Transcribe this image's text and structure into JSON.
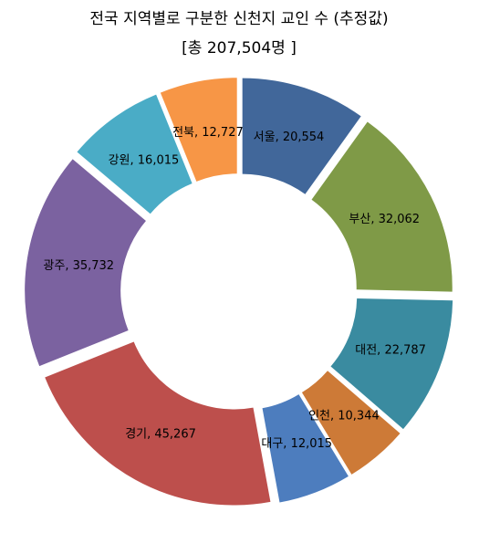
{
  "chart_data": {
    "type": "pie",
    "title": "전국 지역별로 구분한 신천지 교인 수 (추정값)",
    "subtitle": "[총 207,504명 ]",
    "slices": [
      {
        "label": "서울",
        "value": 20554,
        "text": "서울,  20,554",
        "color": "#41679a"
      },
      {
        "label": "부산",
        "value": 32062,
        "text": "부산,  32,062",
        "color": "#7f9a47"
      },
      {
        "label": "대전",
        "value": 22787,
        "text": "대전,  22,787",
        "color": "#3a8ba0"
      },
      {
        "label": "인천",
        "value": 10344,
        "text": "인천,  10,344",
        "color": "#cd7a37"
      },
      {
        "label": "대구",
        "value": 12015,
        "text": "대구,  12,015",
        "color": "#4d7dbe"
      },
      {
        "label": "경기",
        "value": 45267,
        "text": "경기,  45,267",
        "color": "#bd4f4c"
      },
      {
        "label": "광주",
        "value": 35732,
        "text": "광주,  35,732",
        "color": "#7b62a0"
      },
      {
        "label": "강원",
        "value": 16015,
        "text": "강원,  16,015",
        "color": "#4aacc6"
      },
      {
        "label": "전북",
        "value": 12727,
        "text": "전북,  12,727",
        "color": "#f79646"
      }
    ]
  }
}
